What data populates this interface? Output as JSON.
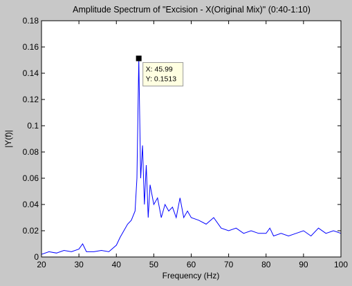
{
  "chart_data": {
    "type": "line",
    "title": "Amplitude Spectrum of \"Excision - X(Original Mix)\" (0:40-1:10)",
    "xlabel": "Frequency (Hz)",
    "ylabel": "|Y(f)|",
    "xlim": [
      20,
      100
    ],
    "ylim": [
      0,
      0.18
    ],
    "xticks": [
      "20",
      "30",
      "40",
      "50",
      "60",
      "70",
      "80",
      "90",
      "100"
    ],
    "yticks": [
      "0",
      "0.02",
      "0.04",
      "0.06",
      "0.08",
      "0.1",
      "0.12",
      "0.14",
      "0.16",
      "0.18"
    ],
    "grid": false,
    "line_color": "#0000ff",
    "series": [
      {
        "x": [
          20,
          22,
          24,
          26,
          28,
          30,
          31,
          32,
          34,
          36,
          38,
          40,
          41,
          42,
          43,
          44,
          45,
          45.5,
          45.99,
          46.5,
          47,
          47.5,
          48,
          48.5,
          49,
          50,
          51,
          52,
          53,
          54,
          55,
          56,
          57,
          58,
          59,
          60,
          62,
          64,
          66,
          68,
          70,
          72,
          74,
          76,
          78,
          80,
          81,
          82,
          84,
          86,
          88,
          90,
          92,
          94,
          96,
          98,
          100
        ],
        "y": [
          0.002,
          0.004,
          0.003,
          0.005,
          0.004,
          0.006,
          0.01,
          0.004,
          0.004,
          0.005,
          0.004,
          0.009,
          0.015,
          0.02,
          0.025,
          0.028,
          0.035,
          0.06,
          0.1513,
          0.06,
          0.085,
          0.04,
          0.07,
          0.03,
          0.055,
          0.04,
          0.045,
          0.03,
          0.04,
          0.035,
          0.038,
          0.03,
          0.045,
          0.03,
          0.035,
          0.03,
          0.028,
          0.025,
          0.03,
          0.022,
          0.02,
          0.022,
          0.018,
          0.02,
          0.018,
          0.018,
          0.022,
          0.016,
          0.018,
          0.016,
          0.018,
          0.02,
          0.016,
          0.022,
          0.018,
          0.02,
          0.018
        ]
      }
    ],
    "datatip": {
      "x": 45.99,
      "y": 0.1513,
      "x_text": "X: 45.99",
      "y_text": "Y: 0.1513"
    }
  }
}
